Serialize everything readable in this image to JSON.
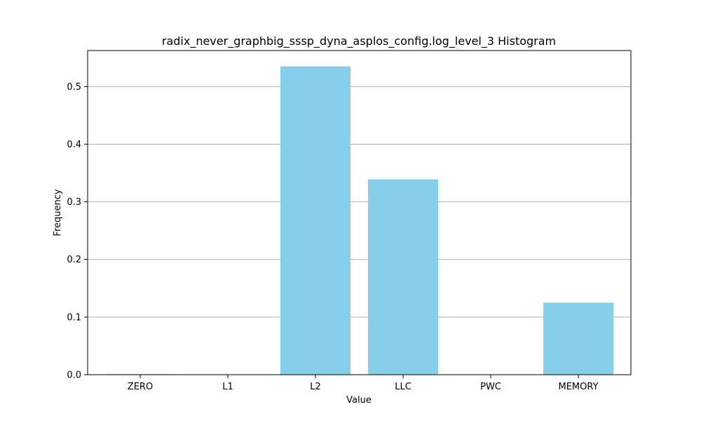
{
  "chart_data": {
    "type": "bar",
    "title": "radix_never_graphbig_sssp_dyna_asplos_config.log_level_3 Histogram",
    "xlabel": "Value",
    "ylabel": "Frequency",
    "categories": [
      "ZERO",
      "L1",
      "L2",
      "LLC",
      "PWC",
      "MEMORY"
    ],
    "values": [
      0.001,
      0.0,
      0.535,
      0.339,
      0.0,
      0.125
    ],
    "ylim": [
      0,
      0.5625
    ],
    "yticks": [
      0.0,
      0.1,
      0.2,
      0.3,
      0.4,
      0.5
    ],
    "ytick_labels": [
      "0.0",
      "0.1",
      "0.2",
      "0.3",
      "0.4",
      "0.5"
    ],
    "grid": {
      "y": true,
      "x": false
    },
    "colors": {
      "bar": "#87CEEB",
      "grid": "#b0b0b0",
      "axis": "#000000"
    }
  }
}
